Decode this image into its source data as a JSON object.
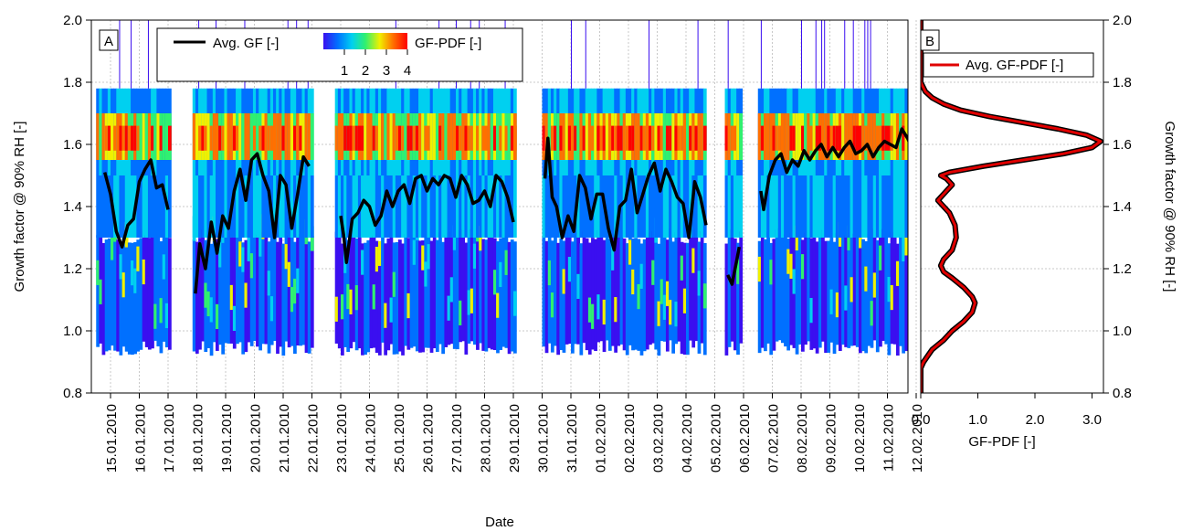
{
  "chart_data": [
    {
      "type": "heatmap",
      "panel_label": "A",
      "xlabel": "Date",
      "ylabel": "Growth factor @ 90% RH [-]",
      "ylim": [
        0.8,
        2.0
      ],
      "yticks": [
        "0.8",
        "1.0",
        "1.2",
        "1.4",
        "1.6",
        "1.8",
        "2.0"
      ],
      "x_dates": [
        "15.01.2010",
        "16.01.2010",
        "17.01.2010",
        "18.01.2010",
        "19.01.2010",
        "20.01.2010",
        "21.01.2010",
        "22.01.2010",
        "23.01.2010",
        "24.01.2010",
        "25.01.2010",
        "26.01.2010",
        "27.01.2010",
        "28.01.2010",
        "29.01.2010",
        "30.01.2010",
        "31.01.2010",
        "01.02.2010",
        "02.02.2010",
        "03.02.2010",
        "04.02.2010",
        "05.02.2010",
        "06.02.2010",
        "07.02.2010",
        "08.02.2010",
        "09.02.2010",
        "10.02.2010",
        "11.02.2010",
        "12.02.2010"
      ],
      "grid": true,
      "legend": {
        "line_label": "Avg. GF [-]",
        "colorbar_label": "GF-PDF [-]",
        "colorbar_ticks": [
          "1",
          "2",
          "3",
          "4"
        ],
        "colorbar_range": [
          0,
          4
        ],
        "colors": [
          "#3a0ff0",
          "#0070ff",
          "#00d0f0",
          "#30f070",
          "#f0f000",
          "#ff7000",
          "#ff0000"
        ]
      },
      "data_gaps": [
        [
          "17.01.2010",
          "18.01.2010"
        ],
        [
          "22.01.2010",
          "23.01.2010"
        ],
        [
          "29.01.2010",
          "30.01.2010"
        ],
        [
          "05.02.2010",
          "06.02.2010"
        ]
      ],
      "series": [
        {
          "name": "Avg. GF [-]",
          "color": "#000000",
          "x_day_offset_from": "15.01.2010",
          "points": [
            [
              -0.2,
              1.51
            ],
            [
              0,
              1.44
            ],
            [
              0.2,
              1.32
            ],
            [
              0.4,
              1.27
            ],
            [
              0.6,
              1.34
            ],
            [
              0.8,
              1.36
            ],
            [
              1.0,
              1.48
            ],
            [
              1.2,
              1.52
            ],
            [
              1.4,
              1.55
            ],
            [
              1.6,
              1.46
            ],
            [
              1.8,
              1.47
            ],
            [
              2.0,
              1.39
            ],
            [
              2.5,
              null
            ],
            [
              2.95,
              1.12
            ],
            [
              3.1,
              1.28
            ],
            [
              3.3,
              1.2
            ],
            [
              3.5,
              1.35
            ],
            [
              3.7,
              1.25
            ],
            [
              3.9,
              1.37
            ],
            [
              4.1,
              1.33
            ],
            [
              4.3,
              1.45
            ],
            [
              4.5,
              1.52
            ],
            [
              4.7,
              1.42
            ],
            [
              4.9,
              1.55
            ],
            [
              5.1,
              1.57
            ],
            [
              5.3,
              1.5
            ],
            [
              5.5,
              1.45
            ],
            [
              5.7,
              1.3
            ],
            [
              5.9,
              1.5
            ],
            [
              6.1,
              1.47
            ],
            [
              6.3,
              1.33
            ],
            [
              6.5,
              1.44
            ],
            [
              6.7,
              1.56
            ],
            [
              6.9,
              1.53
            ],
            [
              7.5,
              null
            ],
            [
              8.0,
              1.37
            ],
            [
              8.1,
              1.31
            ],
            [
              8.2,
              1.22
            ],
            [
              8.4,
              1.36
            ],
            [
              8.6,
              1.38
            ],
            [
              8.8,
              1.42
            ],
            [
              9.0,
              1.4
            ],
            [
              9.2,
              1.34
            ],
            [
              9.4,
              1.37
            ],
            [
              9.6,
              1.45
            ],
            [
              9.8,
              1.4
            ],
            [
              10.0,
              1.45
            ],
            [
              10.2,
              1.47
            ],
            [
              10.4,
              1.41
            ],
            [
              10.6,
              1.49
            ],
            [
              10.8,
              1.5
            ],
            [
              11.0,
              1.45
            ],
            [
              11.2,
              1.49
            ],
            [
              11.4,
              1.47
            ],
            [
              11.6,
              1.5
            ],
            [
              11.8,
              1.49
            ],
            [
              12.0,
              1.43
            ],
            [
              12.2,
              1.5
            ],
            [
              12.4,
              1.47
            ],
            [
              12.6,
              1.41
            ],
            [
              12.8,
              1.42
            ],
            [
              13.0,
              1.45
            ],
            [
              13.2,
              1.4
            ],
            [
              13.4,
              1.5
            ],
            [
              13.6,
              1.48
            ],
            [
              13.8,
              1.43
            ],
            [
              14.0,
              1.35
            ],
            [
              14.6,
              null
            ],
            [
              15.1,
              1.49
            ],
            [
              15.2,
              1.62
            ],
            [
              15.35,
              1.43
            ],
            [
              15.5,
              1.4
            ],
            [
              15.7,
              1.3
            ],
            [
              15.9,
              1.37
            ],
            [
              16.1,
              1.32
            ],
            [
              16.3,
              1.5
            ],
            [
              16.5,
              1.46
            ],
            [
              16.7,
              1.36
            ],
            [
              16.9,
              1.44
            ],
            [
              17.1,
              1.44
            ],
            [
              17.3,
              1.33
            ],
            [
              17.5,
              1.26
            ],
            [
              17.7,
              1.4
            ],
            [
              17.9,
              1.42
            ],
            [
              18.1,
              1.52
            ],
            [
              18.3,
              1.38
            ],
            [
              18.5,
              1.44
            ],
            [
              18.7,
              1.5
            ],
            [
              18.9,
              1.54
            ],
            [
              19.1,
              1.45
            ],
            [
              19.3,
              1.52
            ],
            [
              19.5,
              1.48
            ],
            [
              19.7,
              1.43
            ],
            [
              19.9,
              1.41
            ],
            [
              20.1,
              1.3
            ],
            [
              20.3,
              1.48
            ],
            [
              20.5,
              1.43
            ],
            [
              20.7,
              1.34
            ],
            [
              20.9,
              null
            ],
            [
              21.45,
              1.18
            ],
            [
              21.6,
              1.15
            ],
            [
              21.75,
              1.22
            ],
            [
              21.85,
              1.27
            ],
            [
              22.2,
              null
            ],
            [
              22.6,
              1.45
            ],
            [
              22.7,
              1.39
            ],
            [
              22.9,
              1.5
            ],
            [
              23.1,
              1.55
            ],
            [
              23.3,
              1.57
            ],
            [
              23.5,
              1.51
            ],
            [
              23.7,
              1.55
            ],
            [
              23.9,
              1.53
            ],
            [
              24.1,
              1.58
            ],
            [
              24.3,
              1.55
            ],
            [
              24.5,
              1.58
            ],
            [
              24.7,
              1.6
            ],
            [
              24.9,
              1.56
            ],
            [
              25.1,
              1.59
            ],
            [
              25.3,
              1.56
            ],
            [
              25.5,
              1.59
            ],
            [
              25.7,
              1.61
            ],
            [
              25.9,
              1.57
            ],
            [
              26.1,
              1.58
            ],
            [
              26.3,
              1.6
            ],
            [
              26.5,
              1.56
            ],
            [
              26.7,
              1.59
            ],
            [
              26.9,
              1.61
            ],
            [
              27.1,
              1.6
            ],
            [
              27.3,
              1.59
            ],
            [
              27.5,
              1.65
            ],
            [
              27.7,
              1.62
            ],
            [
              27.9,
              1.58
            ],
            [
              28.1,
              1.57
            ],
            [
              28.3,
              1.53
            ],
            [
              28.4,
              1.55
            ]
          ]
        }
      ]
    },
    {
      "type": "line",
      "panel_label": "B",
      "xlabel": "GF-PDF [-]",
      "ylabel": "Growth factor @ 90% RH [-]",
      "xlim": [
        0,
        3.2
      ],
      "xticks": [
        "0.0",
        "1.0",
        "2.0",
        "3.0"
      ],
      "ylim": [
        0.8,
        2.0
      ],
      "yticks": [
        "0.8",
        "1.0",
        "1.2",
        "1.4",
        "1.6",
        "1.8",
        "2.0"
      ],
      "legend": {
        "position": "top-right",
        "label": "Avg. GF-PDF [-]"
      },
      "series": [
        {
          "name": "Avg. GF-PDF [-]",
          "color": "#e00000",
          "points": [
            [
              0.0,
              0.8
            ],
            [
              0.0,
              0.88
            ],
            [
              0.05,
              0.9
            ],
            [
              0.2,
              0.94
            ],
            [
              0.4,
              0.97
            ],
            [
              0.55,
              1.0
            ],
            [
              0.75,
              1.03
            ],
            [
              0.9,
              1.06
            ],
            [
              0.95,
              1.09
            ],
            [
              0.9,
              1.11
            ],
            [
              0.75,
              1.14
            ],
            [
              0.55,
              1.17
            ],
            [
              0.4,
              1.19
            ],
            [
              0.35,
              1.21
            ],
            [
              0.4,
              1.23
            ],
            [
              0.55,
              1.26
            ],
            [
              0.62,
              1.3
            ],
            [
              0.6,
              1.34
            ],
            [
              0.5,
              1.38
            ],
            [
              0.35,
              1.41
            ],
            [
              0.3,
              1.42
            ],
            [
              0.45,
              1.45
            ],
            [
              0.55,
              1.47
            ],
            [
              0.45,
              1.49
            ],
            [
              0.35,
              1.5
            ],
            [
              0.5,
              1.51
            ],
            [
              1.1,
              1.53
            ],
            [
              1.8,
              1.55
            ],
            [
              2.5,
              1.57
            ],
            [
              3.0,
              1.59
            ],
            [
              3.15,
              1.61
            ],
            [
              2.9,
              1.63
            ],
            [
              2.4,
              1.65
            ],
            [
              1.8,
              1.67
            ],
            [
              1.2,
              1.69
            ],
            [
              0.7,
              1.71
            ],
            [
              0.4,
              1.73
            ],
            [
              0.2,
              1.75
            ],
            [
              0.08,
              1.77
            ],
            [
              0.0,
              1.8
            ],
            [
              0.0,
              2.0
            ]
          ]
        }
      ]
    }
  ]
}
